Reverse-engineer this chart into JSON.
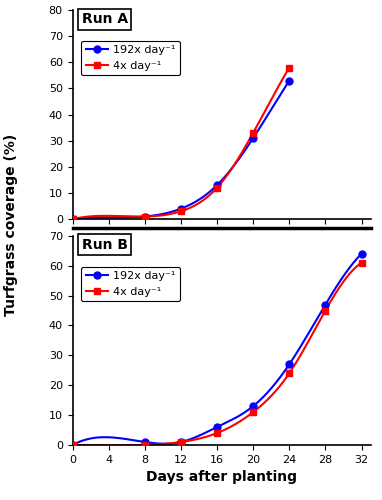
{
  "run_a": {
    "label": "Run A",
    "x": [
      0,
      8,
      12,
      16,
      20,
      24
    ],
    "blue_y": [
      0,
      1,
      4,
      13,
      31,
      53
    ],
    "red_y": [
      0,
      1,
      3,
      12,
      33,
      58
    ]
  },
  "run_b": {
    "label": "Run B",
    "x": [
      0,
      8,
      12,
      16,
      20,
      24,
      28,
      32
    ],
    "blue_y": [
      0,
      1,
      1,
      6,
      13,
      27,
      47,
      64
    ],
    "red_y": [
      0,
      0,
      1,
      4,
      11,
      24,
      45,
      61
    ]
  },
  "blue_color": "#0000FF",
  "red_color": "#FF0000",
  "blue_label": "192x day⁻¹",
  "red_label": "4x day⁻¹",
  "ylabel": "Turfgrass coverage (%)",
  "xlabel": "Days after planting",
  "ylim_a": [
    0,
    80
  ],
  "ylim_b": [
    0,
    70
  ],
  "yticks_a": [
    0,
    10,
    20,
    30,
    40,
    50,
    60,
    70,
    80
  ],
  "yticks_b": [
    0,
    10,
    20,
    30,
    40,
    50,
    60,
    70
  ],
  "xticks": [
    0,
    4,
    8,
    12,
    16,
    20,
    24,
    28,
    32
  ],
  "xlim": [
    0,
    33
  ],
  "marker_size": 5,
  "line_width": 1.5,
  "legend_fontsize": 8,
  "label_fontsize": 10,
  "tick_fontsize": 8
}
